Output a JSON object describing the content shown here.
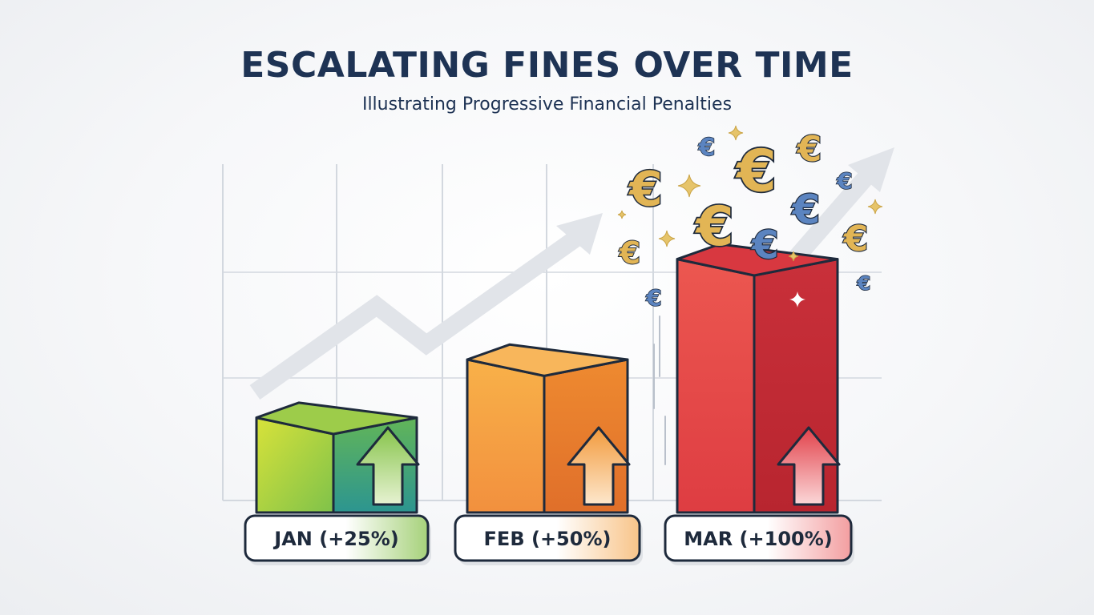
{
  "chart_data": {
    "type": "bar",
    "title": "ESCALATING FINES OVER TIME",
    "subtitle": "Illustrating Progressive Financial Penalties",
    "categories": [
      "JAN (+25%)",
      "FEB (+50%)",
      "MAR (+100%)"
    ],
    "values": [
      25,
      50,
      100
    ],
    "bar_heights_relative": [
      0.4,
      0.62,
      1.0
    ],
    "bar_colors": [
      {
        "front": "#b5d43c",
        "side": "#3aa18e",
        "top": "#9dcc4a"
      },
      {
        "front": "#f6a043",
        "side": "#e8782a",
        "top": "#f8b65b"
      },
      {
        "front": "#e2454a",
        "side": "#c22a34",
        "top": "#d83840"
      }
    ],
    "trend_arrow": true,
    "grid": true,
    "decor_symbol": "€"
  },
  "colors": {
    "title": "#1e3354",
    "outline": "#1e2a3c",
    "grid": "#d3d8df",
    "trend": "#e1e4e9",
    "euro_gold": "#e2b555",
    "euro_blue": "#5b84c0"
  }
}
